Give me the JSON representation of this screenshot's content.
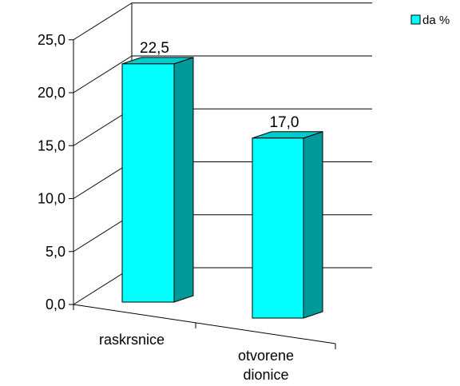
{
  "chart_data": {
    "type": "bar",
    "categories": [
      [
        "raskrsnice"
      ],
      [
        "otvorene",
        "dionice"
      ]
    ],
    "series": [
      {
        "name": "da %",
        "values": [
          22.5,
          17.0
        ],
        "color": "#00FFFF",
        "side_color": "#009999",
        "top_color": "#00CCCC"
      }
    ],
    "data_labels": [
      "22,5",
      "17,0"
    ],
    "y_ticks": [
      "0,0",
      "5,0",
      "10,0",
      "15,0",
      "20,0",
      "25,0"
    ],
    "ylim": [
      0,
      25
    ],
    "grid": true,
    "legend_position": "top-right",
    "style": "3d"
  }
}
